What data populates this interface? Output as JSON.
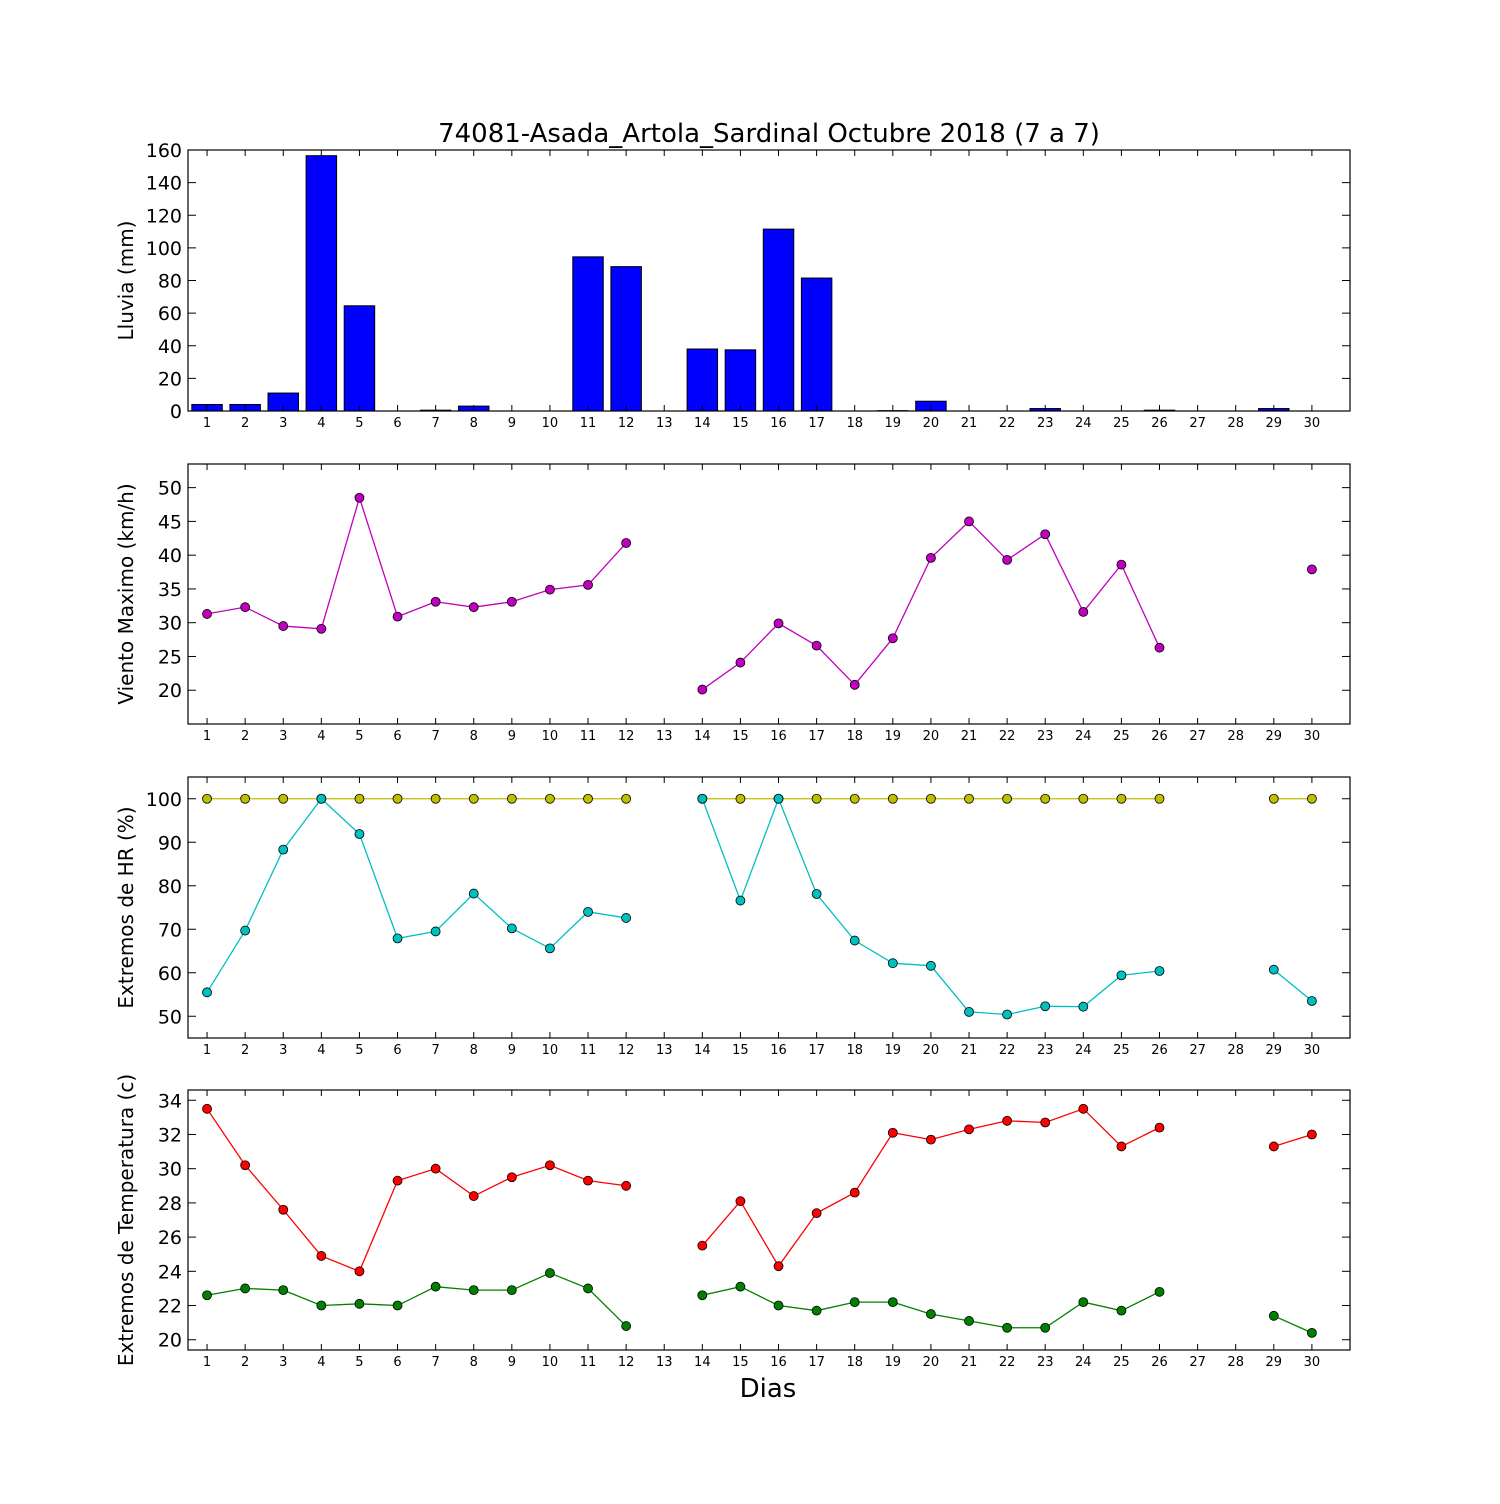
{
  "chart_data": [
    {
      "type": "bar",
      "title": "74081-Asada_Artola_Sardinal Octubre 2018  (7 a 7)",
      "xlabel": "",
      "ylabel": "Lluvia (mm)",
      "categories": [
        "1",
        "2",
        "3",
        "4",
        "5",
        "6",
        "7",
        "8",
        "9",
        "10",
        "11",
        "12",
        "13",
        "14",
        "15",
        "16",
        "17",
        "18",
        "19",
        "20",
        "21",
        "22",
        "23",
        "24",
        "25",
        "26",
        "27",
        "28",
        "29",
        "30"
      ],
      "ylim": [
        0,
        160
      ],
      "yticks": [
        "0",
        "20",
        "40",
        "60",
        "80",
        "100",
        "120",
        "140",
        "160"
      ],
      "series": [
        {
          "color": "#0000ff",
          "values": [
            4,
            4,
            11,
            156.5,
            64.5,
            0,
            0.5,
            3,
            0,
            0,
            94.5,
            88.5,
            0,
            38,
            37.5,
            111.5,
            81.5,
            0,
            0.2,
            6,
            0,
            0,
            1.5,
            0,
            0,
            0.5,
            0,
            0,
            1.5,
            0
          ]
        }
      ]
    },
    {
      "type": "line",
      "title": "",
      "xlabel": "",
      "ylabel": "Viento Maximo (km/h)",
      "categories": [
        "1",
        "2",
        "3",
        "4",
        "5",
        "6",
        "7",
        "8",
        "9",
        "10",
        "11",
        "12",
        "13",
        "14",
        "15",
        "16",
        "17",
        "18",
        "19",
        "20",
        "21",
        "22",
        "23",
        "24",
        "25",
        "26",
        "27",
        "28",
        "29",
        "30"
      ],
      "ylim": [
        15,
        53.5
      ],
      "yticks": [
        "20",
        "25",
        "30",
        "35",
        "40",
        "45",
        "50"
      ],
      "series": [
        {
          "color": "#bf00bf",
          "values": [
            31.3,
            32.3,
            29.5,
            29.1,
            48.5,
            30.9,
            33.1,
            32.3,
            33.1,
            34.9,
            35.6,
            41.8,
            null,
            20.1,
            24.1,
            29.9,
            26.6,
            20.8,
            27.7,
            39.6,
            45.0,
            39.3,
            43.1,
            31.6,
            38.6,
            26.3,
            null,
            null,
            null,
            37.9
          ]
        }
      ]
    },
    {
      "type": "line",
      "title": "",
      "xlabel": "",
      "ylabel": "Extremos de HR (%)",
      "categories": [
        "1",
        "2",
        "3",
        "4",
        "5",
        "6",
        "7",
        "8",
        "9",
        "10",
        "11",
        "12",
        "13",
        "14",
        "15",
        "16",
        "17",
        "18",
        "19",
        "20",
        "21",
        "22",
        "23",
        "24",
        "25",
        "26",
        "27",
        "28",
        "29",
        "30"
      ],
      "ylim": [
        45,
        105
      ],
      "yticks": [
        "50",
        "60",
        "70",
        "80",
        "90",
        "100"
      ],
      "series": [
        {
          "color": "#bfbf00",
          "values": [
            100,
            100,
            100,
            100,
            100,
            100,
            100,
            100,
            100,
            100,
            100,
            100,
            null,
            100,
            100,
            100,
            100,
            100,
            100,
            100,
            100,
            100,
            100,
            100,
            100,
            100,
            null,
            null,
            100,
            100
          ]
        },
        {
          "color": "#00bfbf",
          "values": [
            55.5,
            69.7,
            88.3,
            100,
            91.9,
            67.9,
            69.5,
            78.2,
            70.2,
            65.6,
            74.0,
            72.6,
            null,
            100,
            76.6,
            100,
            78.1,
            67.4,
            62.2,
            61.6,
            51.0,
            50.4,
            52.3,
            52.2,
            59.4,
            60.4,
            null,
            null,
            60.7,
            53.5
          ]
        }
      ]
    },
    {
      "type": "line",
      "title": "",
      "xlabel": "Dias",
      "ylabel": "Extremos de Temperatura (c)",
      "categories": [
        "1",
        "2",
        "3",
        "4",
        "5",
        "6",
        "7",
        "8",
        "9",
        "10",
        "11",
        "12",
        "13",
        "14",
        "15",
        "16",
        "17",
        "18",
        "19",
        "20",
        "21",
        "22",
        "23",
        "24",
        "25",
        "26",
        "27",
        "28",
        "29",
        "30"
      ],
      "ylim": [
        19.4,
        34.6
      ],
      "yticks": [
        "20",
        "22",
        "24",
        "26",
        "28",
        "30",
        "32",
        "34"
      ],
      "series": [
        {
          "color": "#ff0000",
          "values": [
            33.5,
            30.2,
            27.6,
            24.9,
            24.0,
            29.3,
            30.0,
            28.4,
            29.5,
            30.2,
            29.3,
            29.0,
            null,
            25.5,
            28.1,
            24.3,
            27.4,
            28.6,
            32.1,
            31.7,
            32.3,
            32.8,
            32.7,
            33.5,
            31.3,
            32.4,
            null,
            null,
            31.3,
            32.0
          ]
        },
        {
          "color": "#008000",
          "values": [
            22.6,
            23.0,
            22.9,
            22.0,
            22.1,
            22.0,
            23.1,
            22.9,
            22.9,
            23.9,
            23.0,
            20.8,
            null,
            22.6,
            23.1,
            22.0,
            21.7,
            22.2,
            22.2,
            21.5,
            21.1,
            20.7,
            20.7,
            22.2,
            21.7,
            22.8,
            null,
            null,
            21.4,
            20.4
          ]
        }
      ]
    }
  ]
}
